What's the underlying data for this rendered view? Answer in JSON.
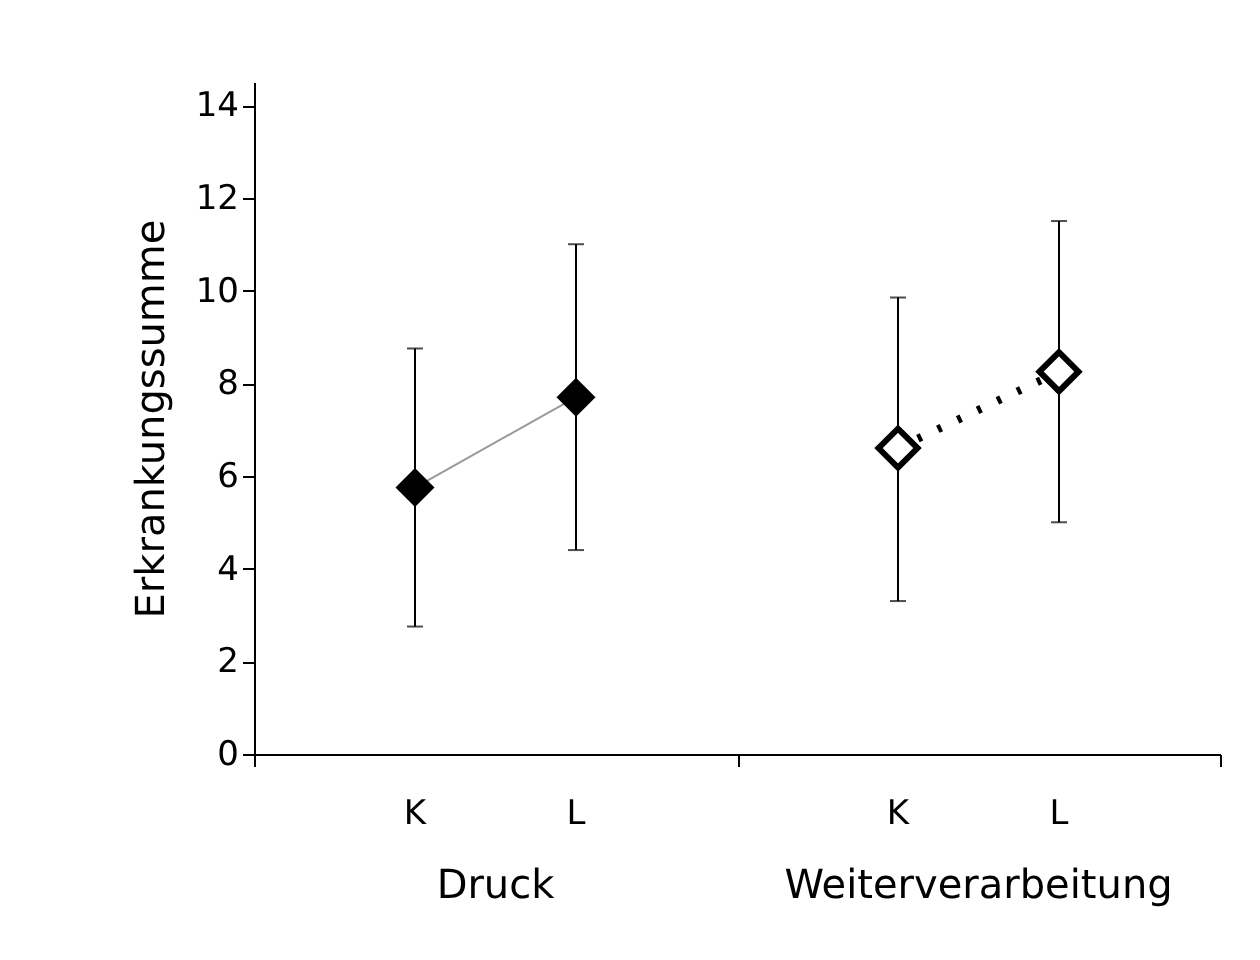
{
  "chart_data": {
    "type": "line",
    "ylabel": "Erkrankungssumme",
    "categories": [
      "K",
      "L",
      null,
      "K",
      "L"
    ],
    "series": [
      {
        "color": "#000000",
        "values": [
          5.75,
          7.7,
          null,
          null,
          null
        ],
        "errors": [
          [
            2.75,
            8.75
          ],
          [
            4.4,
            11.0
          ],
          null,
          null,
          null
        ],
        "line_style": "solid"
      },
      {
        "color": "#000000",
        "values": [
          null,
          null,
          null,
          6.6,
          8.25
        ],
        "errors": [
          null,
          null,
          null,
          [
            3.3,
            9.85
          ],
          [
            5.0,
            11.5
          ]
        ],
        "line_style": "dotted"
      }
    ],
    "annotations": [
      "Druck",
      "Weiterverarbeitung"
    ],
    "ylim": [
      0,
      14.5
    ],
    "yticks": [
      0,
      2,
      4,
      6,
      8,
      10,
      12,
      14
    ],
    "marker": "diamond",
    "grid": false
  }
}
